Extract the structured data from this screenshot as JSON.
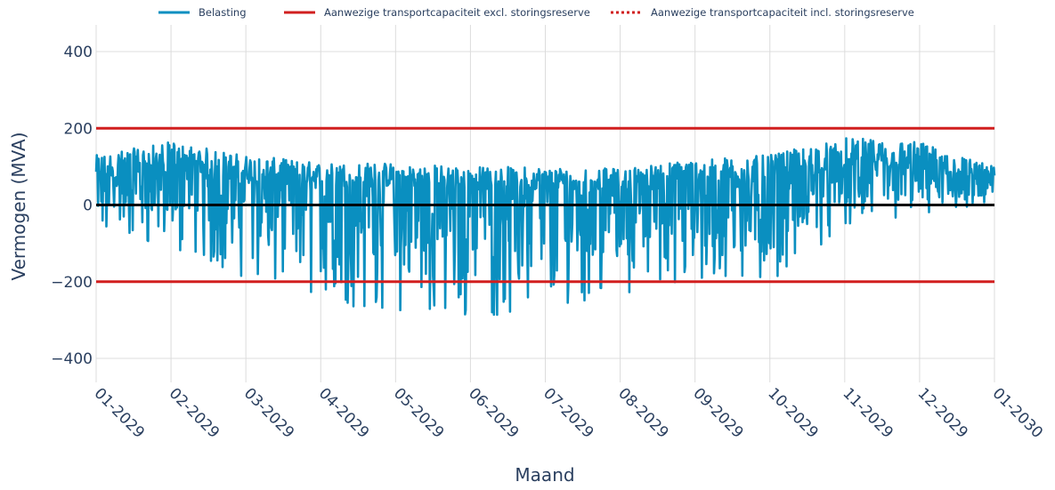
{
  "chart_data": {
    "type": "line",
    "x_axis": {
      "label": "Maand",
      "ticks": [
        "01-2029",
        "02-2029",
        "03-2029",
        "04-2029",
        "05-2029",
        "06-2029",
        "07-2029",
        "08-2029",
        "09-2029",
        "10-2029",
        "11-2029",
        "12-2029",
        "01-2030"
      ],
      "range": [
        "01-2029",
        "01-2030"
      ]
    },
    "y_axis": {
      "label": "Vermogen (MVA)",
      "ticks": [
        400,
        200,
        0,
        -200,
        -400
      ],
      "tick_labels": [
        "400",
        "200",
        "0",
        "−200",
        "−400"
      ],
      "range": [
        -460,
        460
      ]
    },
    "legend": {
      "placement": "top-center",
      "items": [
        {
          "label": "Belasting",
          "style": "solid",
          "color": "#0a8fc0"
        },
        {
          "label": "Aanwezige transportcapaciteit excl. storingsreserve",
          "style": "solid",
          "color": "#d11f1f"
        },
        {
          "label": "Aanwezige transportcapaciteit incl. storingsreserve",
          "style": "dotted",
          "color": "#d11f1f"
        }
      ]
    },
    "series": [
      {
        "name": "Belasting",
        "color": "#0a8fc0",
        "monthly_profile": {
          "months": [
            "01-2029",
            "02-2029",
            "03-2029",
            "04-2029",
            "05-2029",
            "06-2029",
            "07-2029",
            "08-2029",
            "09-2029",
            "10-2029",
            "11-2029",
            "12-2029",
            "01-2030"
          ],
          "max": [
            130,
            165,
            130,
            110,
            110,
            100,
            100,
            95,
            120,
            130,
            175,
            165,
            100
          ],
          "min": [
            -80,
            -120,
            -190,
            -260,
            -280,
            -300,
            -270,
            -230,
            -210,
            -200,
            -60,
            -30,
            -10
          ]
        }
      },
      {
        "name": "Aanwezige transportcapaciteit excl. storingsreserve",
        "color": "#d11f1f",
        "values": [
          200,
          -200
        ]
      },
      {
        "name": "Aanwezige transportcapaciteit incl. storingsreserve",
        "color": "#d11f1f",
        "values": [
          200,
          -200
        ]
      }
    ],
    "zero_line": {
      "value": 0,
      "color": "#000000"
    },
    "grid": true
  }
}
